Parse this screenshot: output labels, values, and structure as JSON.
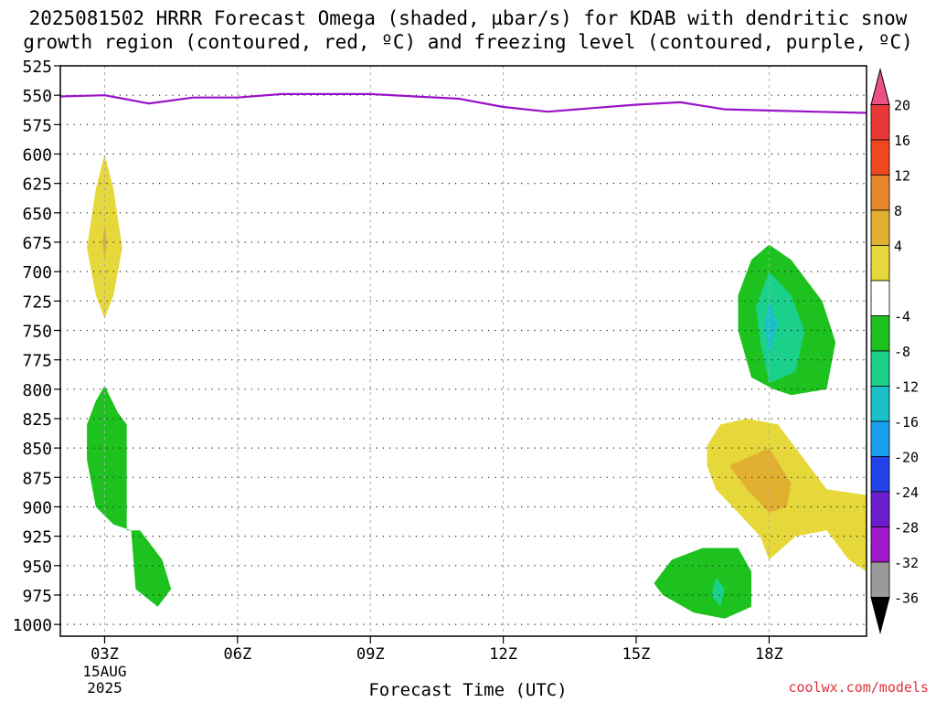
{
  "title_line1": "2025081502 HRRR Forecast Omega (shaded, µbar/s) for KDAB with dendritic snow",
  "title_line2": "growth region (contoured, red, ºC) and freezing level (contoured, purple, ºC)",
  "credit": "coolwx.com/models",
  "chart_data": {
    "type": "contour-time-height",
    "xlabel": "Forecast Time (UTC)",
    "ylabel": "",
    "x_range_hours": [
      2,
      20.2
    ],
    "y_range_hpa": [
      525,
      1010
    ],
    "y_ticks": [
      525,
      550,
      575,
      600,
      625,
      650,
      675,
      700,
      725,
      750,
      775,
      800,
      825,
      850,
      875,
      900,
      925,
      950,
      975,
      1000
    ],
    "x_ticks": [
      {
        "hour": 3,
        "label": "03Z",
        "sub": [
          "15AUG",
          "2025"
        ]
      },
      {
        "hour": 6,
        "label": "06Z"
      },
      {
        "hour": 9,
        "label": "09Z"
      },
      {
        "hour": 12,
        "label": "12Z"
      },
      {
        "hour": 15,
        "label": "15Z"
      },
      {
        "hour": 18,
        "label": "18Z"
      }
    ],
    "grid": true,
    "colorbar": {
      "levels": [
        20,
        16,
        12,
        8,
        4,
        -4,
        -8,
        -12,
        -16,
        -20,
        -24,
        -28,
        -32,
        -36
      ],
      "colors": [
        "#ec5088",
        "#e83838",
        "#ee4820",
        "#e8882c",
        "#e2b030",
        "#e6d83a",
        "#ffffff",
        "#1ec21e",
        "#1ad08a",
        "#1ac0c8",
        "#1a9ff0",
        "#2244e6",
        "#6a1ed0",
        "#a018c8",
        "#9a9a9a",
        "#000000"
      ]
    },
    "freezing_level": {
      "color": "#9a12c8",
      "points": [
        [
          2,
          551
        ],
        [
          3,
          550
        ],
        [
          4,
          557
        ],
        [
          5,
          552
        ],
        [
          6,
          552
        ],
        [
          7,
          549
        ],
        [
          8,
          549
        ],
        [
          9,
          549
        ],
        [
          10,
          551
        ],
        [
          11,
          553
        ],
        [
          12,
          560
        ],
        [
          13,
          564
        ],
        [
          14,
          561
        ],
        [
          15,
          558
        ],
        [
          16,
          556
        ],
        [
          17,
          562
        ],
        [
          18,
          563
        ],
        [
          19,
          564
        ],
        [
          20.2,
          565
        ]
      ]
    },
    "omega_regions": [
      {
        "value_range": "4 to 8",
        "color": "#e6d83a",
        "points": [
          [
            3,
            600
          ],
          [
            3.2,
            630
          ],
          [
            3.4,
            680
          ],
          [
            3.2,
            720
          ],
          [
            3,
            740
          ],
          [
            2.8,
            720
          ],
          [
            2.6,
            680
          ],
          [
            2.8,
            630
          ]
        ]
      },
      {
        "value_range": "8 to 12",
        "color": "#e2b030",
        "points": [
          [
            3,
            660
          ],
          [
            3.05,
            675
          ],
          [
            3,
            690
          ],
          [
            2.95,
            675
          ]
        ]
      },
      {
        "value_range": "-4 to -8",
        "color": "#1ec21e",
        "points": [
          [
            3,
            797
          ],
          [
            3.3,
            820
          ],
          [
            3.5,
            830
          ],
          [
            3.5,
            920
          ],
          [
            3.8,
            920
          ],
          [
            4.3,
            945
          ],
          [
            4.5,
            970
          ],
          [
            4.2,
            985
          ],
          [
            3.7,
            970
          ],
          [
            3.6,
            920
          ],
          [
            3.2,
            915
          ],
          [
            2.8,
            900
          ],
          [
            2.6,
            860
          ],
          [
            2.6,
            830
          ],
          [
            2.8,
            810
          ]
        ]
      },
      {
        "value_range": "4 to 8",
        "color": "#e6d83a",
        "points": [
          [
            16.6,
            848
          ],
          [
            16.9,
            830
          ],
          [
            17.5,
            825
          ],
          [
            18.2,
            830
          ],
          [
            18.8,
            860
          ],
          [
            19.3,
            885
          ],
          [
            20.2,
            890
          ],
          [
            20.2,
            955
          ],
          [
            19.8,
            945
          ],
          [
            19.3,
            920
          ],
          [
            18.6,
            925
          ],
          [
            18,
            945
          ],
          [
            17.8,
            925
          ],
          [
            17.3,
            905
          ],
          [
            16.8,
            885
          ],
          [
            16.6,
            865
          ]
        ]
      },
      {
        "value_range": "8 to 12",
        "color": "#e2b030",
        "points": [
          [
            17.1,
            865
          ],
          [
            18,
            850
          ],
          [
            18.5,
            880
          ],
          [
            18.4,
            900
          ],
          [
            18,
            905
          ],
          [
            17.5,
            885
          ]
        ]
      },
      {
        "value_range": "-4 to -8",
        "color": "#1ec21e",
        "points": [
          [
            18,
            677
          ],
          [
            18.5,
            690
          ],
          [
            19.2,
            725
          ],
          [
            19.5,
            760
          ],
          [
            19.3,
            800
          ],
          [
            18.5,
            805
          ],
          [
            18.1,
            800
          ],
          [
            17.6,
            790
          ],
          [
            17.3,
            750
          ],
          [
            17.3,
            720
          ],
          [
            17.6,
            690
          ]
        ]
      },
      {
        "value_range": "-8 to -12",
        "color": "#1ad08a",
        "points": [
          [
            18,
            700
          ],
          [
            18.5,
            720
          ],
          [
            18.8,
            750
          ],
          [
            18.6,
            785
          ],
          [
            18,
            795
          ],
          [
            17.8,
            760
          ],
          [
            17.7,
            730
          ]
        ]
      },
      {
        "value_range": "-12 to -16",
        "color": "#1ac0c8",
        "points": [
          [
            18,
            725
          ],
          [
            18.2,
            745
          ],
          [
            18,
            770
          ],
          [
            17.9,
            745
          ]
        ]
      },
      {
        "value_range": "-4 to -8",
        "color": "#1ec21e",
        "points": [
          [
            15.4,
            965
          ],
          [
            15.8,
            945
          ],
          [
            16.5,
            935
          ],
          [
            17.3,
            935
          ],
          [
            17.6,
            955
          ],
          [
            17.6,
            985
          ],
          [
            17,
            995
          ],
          [
            16.3,
            990
          ],
          [
            15.6,
            975
          ]
        ]
      },
      {
        "value_range": "-8 to -12",
        "color": "#1ad08a",
        "points": [
          [
            16.8,
            960
          ],
          [
            17,
            970
          ],
          [
            16.9,
            985
          ],
          [
            16.7,
            975
          ]
        ]
      }
    ],
    "ground": {
      "color": "#b5602a",
      "p_top": 1012
    }
  }
}
